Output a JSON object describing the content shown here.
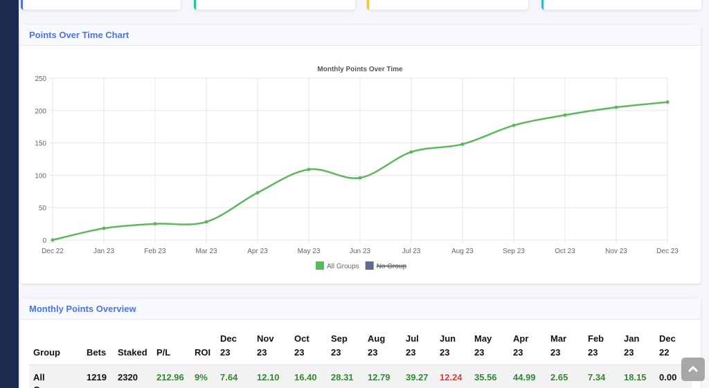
{
  "chart_panel": {
    "title": "Points Over Time Chart"
  },
  "chart_data": {
    "type": "line",
    "title": "Monthly Points Over Time",
    "categories": [
      "Dec 22",
      "Jan 23",
      "Feb 23",
      "Mar 23",
      "Apr 23",
      "May 23",
      "Jun 23",
      "Jul 23",
      "Aug 23",
      "Sep 23",
      "Oct 23",
      "Nov 23",
      "Dec 23"
    ],
    "series": [
      {
        "name": "All Groups",
        "color": "#5cb85c",
        "values": [
          0,
          18,
          25,
          28,
          73,
          109,
          96,
          136,
          148,
          177,
          193,
          205,
          213
        ]
      }
    ],
    "hidden_series": [
      {
        "name": "No Group",
        "color": "#5f6b8a"
      }
    ],
    "ylim": [
      0,
      250
    ],
    "yticks": [
      0,
      50,
      100,
      150,
      200,
      250
    ],
    "grid": true,
    "legend": "bottom"
  },
  "table_panel": {
    "title": "Monthly Points Overview",
    "columns": [
      "Group",
      "Bets",
      "Staked",
      "P/L",
      "ROI",
      "Dec 23",
      "Nov 23",
      "Oct 23",
      "Sep 23",
      "Aug 23",
      "Jul 23",
      "Jun 23",
      "May 23",
      "Apr 23",
      "Mar 23",
      "Feb 23",
      "Jan 23",
      "Dec 22"
    ],
    "rows": [
      [
        {
          "text": "All Groups",
          "color": "#111111"
        },
        {
          "text": "1219",
          "color": "#111111"
        },
        {
          "text": "2320",
          "color": "#111111"
        },
        {
          "text": "212.96",
          "color": "#2e8b2e"
        },
        {
          "text": "9%",
          "color": "#2e8b2e"
        },
        {
          "text": "7.64",
          "color": "#2e8b2e"
        },
        {
          "text": "12.10",
          "color": "#2e8b2e"
        },
        {
          "text": "16.40",
          "color": "#2e8b2e"
        },
        {
          "text": "28.31",
          "color": "#2e8b2e"
        },
        {
          "text": "12.79",
          "color": "#2e8b2e"
        },
        {
          "text": "39.27",
          "color": "#2e8b2e"
        },
        {
          "text": "12.24",
          "color": "#e53935"
        },
        {
          "text": "35.56",
          "color": "#2e8b2e"
        },
        {
          "text": "44.99",
          "color": "#2e8b2e"
        },
        {
          "text": "2.65",
          "color": "#2e8b2e"
        },
        {
          "text": "7.34",
          "color": "#2e8b2e"
        },
        {
          "text": "18.15",
          "color": "#2e8b2e"
        },
        {
          "text": "0.00",
          "color": "#111111"
        }
      ]
    ]
  }
}
